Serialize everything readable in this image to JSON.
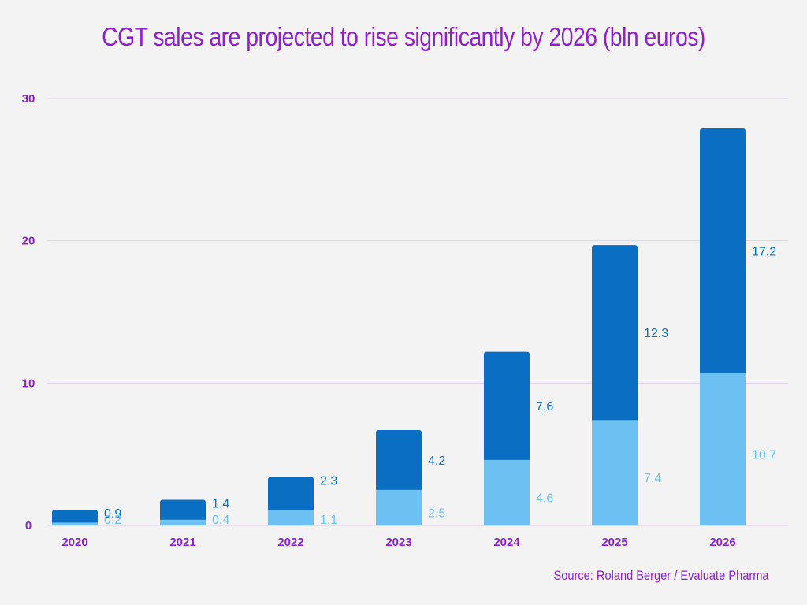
{
  "chart_data": {
    "type": "bar",
    "stacked": true,
    "title": "CGT  sales are projected to rise significantly by 2026 (bln euros)",
    "source": "Source: Roland Berger / Evaluate Pharma",
    "categories": [
      "2020",
      "2021",
      "2022",
      "2023",
      "2024",
      "2025",
      "2026"
    ],
    "series": [
      {
        "values": [
          0.2,
          0.4,
          1.1,
          2.5,
          4.6,
          7.4,
          10.7
        ],
        "color": "#6cc0f2"
      },
      {
        "values": [
          0.9,
          1.4,
          2.3,
          4.2,
          7.6,
          12.3,
          17.2
        ],
        "color": "#0a6fc2"
      }
    ],
    "ylim": [
      0,
      30
    ],
    "yticks": [
      0,
      10,
      20,
      30
    ],
    "grid": true,
    "colors": {
      "title": "#8e1fc9",
      "grid": "#e3cdeb"
    }
  }
}
